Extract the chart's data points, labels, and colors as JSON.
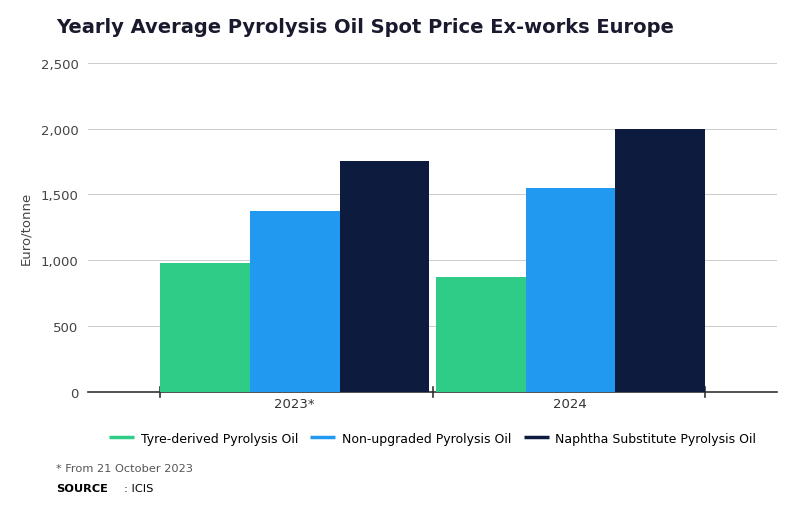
{
  "title": "Yearly Average Pyrolysis Oil Spot Price Ex-works Europe",
  "ylabel": "Euro/tonne",
  "categories": [
    "2023*",
    "2024"
  ],
  "series": {
    "Tyre-derived Pyrolysis Oil": [
      975,
      875
    ],
    "Non-upgraded Pyrolysis Oil": [
      1375,
      1550
    ],
    "Naphtha Substitute Pyrolysis Oil": [
      1750,
      2000
    ]
  },
  "colors": {
    "Tyre-derived Pyrolysis Oil": "#2ecc87",
    "Non-upgraded Pyrolysis Oil": "#2299f0",
    "Naphtha Substitute Pyrolysis Oil": "#0d1b3e"
  },
  "ylim": [
    0,
    2500
  ],
  "yticks": [
    0,
    500,
    1000,
    1500,
    2000,
    2500
  ],
  "ytick_labels": [
    "0",
    "500",
    "1,000",
    "1,500",
    "2,000",
    "2,500"
  ],
  "footnote": "* From 21 October 2023",
  "background_color": "#ffffff",
  "bar_width": 0.13,
  "title_fontsize": 14,
  "axis_fontsize": 9.5,
  "legend_fontsize": 9,
  "tick_fontsize": 9.5
}
